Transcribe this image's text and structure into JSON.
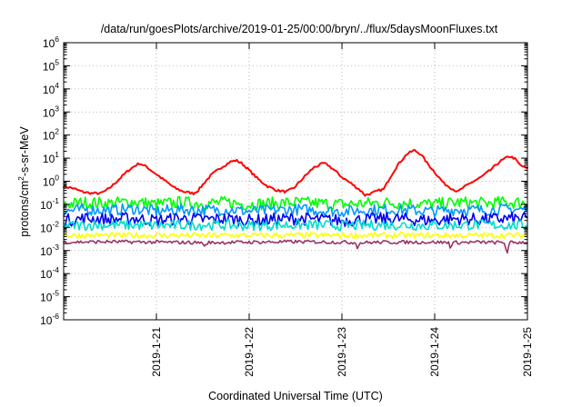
{
  "chart_data": {
    "type": "line",
    "title": "/data/run/goesPlots/archive/2019-01-25/00:00/bryn/../flux/5daysMoonFluxes.txt",
    "xlabel": "Coordinated Universal Time (UTC)",
    "ylabel": {
      "base": "protons/cm",
      "sup": "2",
      "rest": "-s-sr-MeV"
    },
    "x_range_days": [
      0,
      5
    ],
    "x_ticks": [
      {
        "day": 1,
        "label": "2019-1-21"
      },
      {
        "day": 2,
        "label": "2019-1-22"
      },
      {
        "day": 3,
        "label": "2019-1-23"
      },
      {
        "day": 4,
        "label": "2019-1-24"
      },
      {
        "day": 5,
        "label": "2019-1-25"
      }
    ],
    "y_scale": "log",
    "ylim": [
      1e-06,
      1000000.0
    ],
    "y_ticks": [
      {
        "exp": -6,
        "base": "10",
        "sup": "-6"
      },
      {
        "exp": -5,
        "base": "10",
        "sup": "-5"
      },
      {
        "exp": -4,
        "base": "10",
        "sup": "-4"
      },
      {
        "exp": -3,
        "base": "10",
        "sup": "-3"
      },
      {
        "exp": -2,
        "base": "10",
        "sup": "-2"
      },
      {
        "exp": -1,
        "base": "10",
        "sup": "-1"
      },
      {
        "exp": 0,
        "base": "10",
        "sup": "0"
      },
      {
        "exp": 1,
        "base": "10",
        "sup": "1"
      },
      {
        "exp": 2,
        "base": "10",
        "sup": "2"
      },
      {
        "exp": 3,
        "base": "10",
        "sup": "3"
      },
      {
        "exp": 4,
        "base": "10",
        "sup": "4"
      },
      {
        "exp": 5,
        "base": "10",
        "sup": "5"
      },
      {
        "exp": 6,
        "base": "10",
        "sup": "6"
      }
    ],
    "grid": true,
    "series": [
      {
        "color": "#ff0000",
        "points": [
          [
            0.0,
            0.6
          ],
          [
            0.1,
            0.5
          ],
          [
            0.2,
            0.35
          ],
          [
            0.3,
            0.3
          ],
          [
            0.4,
            0.3
          ],
          [
            0.48,
            0.45
          ],
          [
            0.55,
            0.8
          ],
          [
            0.62,
            1.5
          ],
          [
            0.7,
            3
          ],
          [
            0.78,
            5
          ],
          [
            0.82,
            6
          ],
          [
            0.9,
            4
          ],
          [
            1.0,
            2
          ],
          [
            1.1,
            1
          ],
          [
            1.2,
            0.5
          ],
          [
            1.3,
            0.35
          ],
          [
            1.4,
            0.3
          ],
          [
            1.45,
            0.4
          ],
          [
            1.52,
            0.9
          ],
          [
            1.6,
            2
          ],
          [
            1.7,
            4
          ],
          [
            1.8,
            7
          ],
          [
            1.86,
            8
          ],
          [
            1.92,
            6
          ],
          [
            2.0,
            3
          ],
          [
            2.1,
            1.2
          ],
          [
            2.2,
            0.6
          ],
          [
            2.3,
            0.4
          ],
          [
            2.4,
            0.35
          ],
          [
            2.48,
            0.5
          ],
          [
            2.55,
            1
          ],
          [
            2.62,
            2
          ],
          [
            2.7,
            4
          ],
          [
            2.8,
            6
          ],
          [
            2.85,
            5
          ],
          [
            2.92,
            3
          ],
          [
            3.0,
            1.5
          ],
          [
            3.1,
            0.8
          ],
          [
            3.2,
            0.4
          ],
          [
            3.25,
            0.25
          ],
          [
            3.32,
            0.3
          ],
          [
            3.4,
            0.4
          ],
          [
            3.45,
            0.45
          ],
          [
            3.52,
            1.5
          ],
          [
            3.6,
            5
          ],
          [
            3.7,
            15
          ],
          [
            3.78,
            22
          ],
          [
            3.85,
            15
          ],
          [
            3.92,
            6
          ],
          [
            4.0,
            2.5
          ],
          [
            4.1,
            0.8
          ],
          [
            4.2,
            0.45
          ],
          [
            4.25,
            0.35
          ],
          [
            4.3,
            0.5
          ],
          [
            4.4,
            0.9
          ],
          [
            4.5,
            1.5
          ],
          [
            4.6,
            3
          ],
          [
            4.7,
            7
          ],
          [
            4.8,
            12
          ],
          [
            4.86,
            10
          ],
          [
            4.92,
            5
          ],
          [
            5.0,
            3.5
          ]
        ]
      },
      {
        "color": "#00ff00",
        "points": [
          [
            0.0,
            0.1
          ],
          [
            0.25,
            0.12
          ],
          [
            0.5,
            0.11
          ],
          [
            0.75,
            0.13
          ],
          [
            1.0,
            0.1
          ],
          [
            1.25,
            0.12
          ],
          [
            1.5,
            0.11
          ],
          [
            1.75,
            0.12
          ],
          [
            2.0,
            0.1
          ],
          [
            2.25,
            0.11
          ],
          [
            2.5,
            0.12
          ],
          [
            2.75,
            0.11
          ],
          [
            3.0,
            0.1
          ],
          [
            3.25,
            0.11
          ],
          [
            3.5,
            0.12
          ],
          [
            3.75,
            0.11
          ],
          [
            4.0,
            0.1
          ],
          [
            4.25,
            0.12
          ],
          [
            4.5,
            0.11
          ],
          [
            4.75,
            0.12
          ],
          [
            5.0,
            0.12
          ]
        ]
      },
      {
        "color": "#0099ff",
        "points": [
          [
            0.0,
            0.05
          ],
          [
            0.25,
            0.06
          ],
          [
            0.5,
            0.055
          ],
          [
            0.75,
            0.065
          ],
          [
            1.0,
            0.05
          ],
          [
            1.25,
            0.06
          ],
          [
            1.5,
            0.055
          ],
          [
            1.75,
            0.06
          ],
          [
            2.0,
            0.05
          ],
          [
            2.25,
            0.055
          ],
          [
            2.5,
            0.06
          ],
          [
            2.75,
            0.055
          ],
          [
            3.0,
            0.05
          ],
          [
            3.25,
            0.055
          ],
          [
            3.5,
            0.06
          ],
          [
            3.75,
            0.055
          ],
          [
            4.0,
            0.05
          ],
          [
            4.25,
            0.06
          ],
          [
            4.5,
            0.055
          ],
          [
            4.75,
            0.06
          ],
          [
            5.0,
            0.06
          ]
        ]
      },
      {
        "color": "#0000ee",
        "points": [
          [
            0.0,
            0.02
          ],
          [
            0.25,
            0.025
          ],
          [
            0.5,
            0.022
          ],
          [
            0.75,
            0.025
          ],
          [
            1.0,
            0.02
          ],
          [
            1.25,
            0.024
          ],
          [
            1.5,
            0.022
          ],
          [
            1.75,
            0.024
          ],
          [
            2.0,
            0.02
          ],
          [
            2.25,
            0.022
          ],
          [
            2.5,
            0.024
          ],
          [
            2.75,
            0.022
          ],
          [
            3.0,
            0.02
          ],
          [
            3.25,
            0.022
          ],
          [
            3.5,
            0.024
          ],
          [
            3.75,
            0.022
          ],
          [
            4.0,
            0.02
          ],
          [
            4.25,
            0.024
          ],
          [
            4.5,
            0.022
          ],
          [
            4.75,
            0.024
          ],
          [
            5.0,
            0.024
          ]
        ]
      },
      {
        "color": "#00ddcc",
        "points": [
          [
            0.0,
            0.012
          ],
          [
            0.5,
            0.013
          ],
          [
            1.0,
            0.012
          ],
          [
            1.5,
            0.013
          ],
          [
            2.0,
            0.012
          ],
          [
            2.5,
            0.013
          ],
          [
            3.0,
            0.012
          ],
          [
            3.5,
            0.013
          ],
          [
            4.0,
            0.012
          ],
          [
            4.5,
            0.013
          ],
          [
            5.0,
            0.012
          ]
        ]
      },
      {
        "color": "#ffff00",
        "points": [
          [
            0.0,
            0.0045
          ],
          [
            1.0,
            0.0045
          ],
          [
            2.0,
            0.0045
          ],
          [
            3.0,
            0.0045
          ],
          [
            4.0,
            0.0045
          ],
          [
            5.0,
            0.0045
          ]
        ]
      },
      {
        "color": "#993366",
        "points": [
          [
            0.0,
            0.0023
          ],
          [
            0.5,
            0.0024
          ],
          [
            1.0,
            0.0023
          ],
          [
            1.5,
            0.0022
          ],
          [
            1.52,
            0.0013
          ],
          [
            1.55,
            0.0022
          ],
          [
            2.0,
            0.0023
          ],
          [
            2.5,
            0.0024
          ],
          [
            3.0,
            0.0023
          ],
          [
            3.15,
            0.0022
          ],
          [
            3.17,
            0.0013
          ],
          [
            3.2,
            0.0022
          ],
          [
            3.5,
            0.0023
          ],
          [
            4.0,
            0.0023
          ],
          [
            4.15,
            0.0022
          ],
          [
            4.17,
            0.0014
          ],
          [
            4.2,
            0.0022
          ],
          [
            4.5,
            0.0023
          ],
          [
            4.75,
            0.0022
          ],
          [
            4.78,
            0.0008
          ],
          [
            4.81,
            0.0022
          ],
          [
            5.0,
            0.0023
          ]
        ]
      }
    ]
  }
}
